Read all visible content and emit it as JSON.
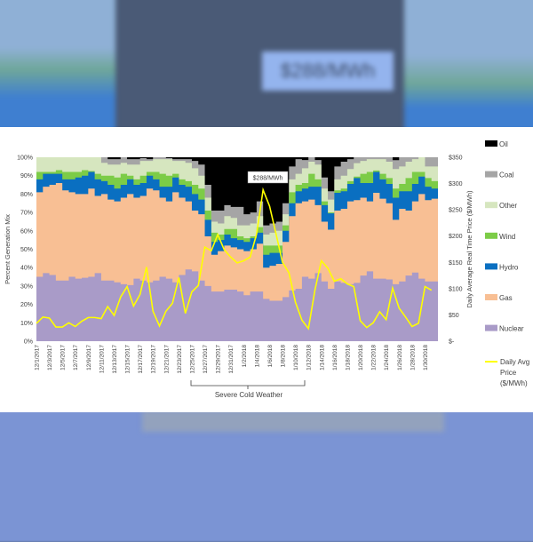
{
  "background": {
    "blurred_annotation": "$288/MWh"
  },
  "chart_data": {
    "type": "area",
    "subtype": "stacked step area with line overlay (secondary axis)",
    "x_start": "12/1/2017",
    "x_tick_labels": [
      "12/1/2017",
      "12/3/2017",
      "12/5/2017",
      "12/7/2017",
      "12/9/2017",
      "12/11/2017",
      "12/13/2017",
      "12/15/2017",
      "12/17/2017",
      "12/19/2017",
      "12/21/2017",
      "12/23/2017",
      "12/25/2017",
      "12/27/2017",
      "12/29/2017",
      "12/31/2017",
      "1/2/2018",
      "1/4/2018",
      "1/6/2018",
      "1/8/2018",
      "1/10/2018",
      "1/12/2018",
      "1/14/2018",
      "1/16/2018",
      "1/18/2018",
      "1/20/2018",
      "1/22/2018",
      "1/24/2018",
      "1/26/2018",
      "1/28/2018",
      "1/30/2018"
    ],
    "days": 62,
    "ylabel": "Percent Generation Mix",
    "ylabel_right": "Daily Average Real Time Price ($/MWh)",
    "y_ticks": [
      "0%",
      "10%",
      "20%",
      "30%",
      "40%",
      "50%",
      "60%",
      "70%",
      "80%",
      "90%",
      "100%"
    ],
    "y_right_ticks": [
      "$-",
      "$50",
      "$100",
      "$150",
      "$200",
      "$250",
      "$300",
      "$350"
    ],
    "ylim": [
      0,
      100
    ],
    "ylim_right": [
      0,
      350
    ],
    "stack_note": "values are cumulative stack tops in percent; Oil fills to 100%",
    "series": [
      {
        "name": "Nuclear",
        "color": "#a99bc8",
        "stack_top": [
          35,
          37,
          36,
          33,
          33,
          35,
          34,
          34.5,
          35,
          37,
          33,
          33,
          32,
          31,
          30.5,
          34,
          33,
          32,
          33,
          35,
          34,
          32,
          36,
          39,
          38,
          33,
          30,
          27,
          27,
          28,
          28,
          27,
          25,
          27,
          27,
          23,
          22,
          22,
          24,
          27.6,
          28.5,
          35,
          34,
          37,
          32.5,
          28.5,
          32.5,
          31.7,
          31,
          31.7,
          35.7,
          38,
          34,
          34,
          33.6,
          31,
          32.5,
          35.7,
          37.3,
          34,
          32.5,
          32.5
        ]
      },
      {
        "name": "Gas",
        "color": "#f8bf94",
        "stack_top": [
          81,
          84,
          85,
          86,
          82,
          81,
          80,
          80,
          83,
          79,
          80,
          77,
          76,
          78,
          80,
          78,
          79,
          83,
          82,
          78,
          76,
          81,
          78,
          76,
          71,
          69,
          57,
          47,
          49,
          52,
          51,
          50,
          49,
          50,
          53,
          40,
          41,
          42,
          54,
          68,
          75,
          76,
          77,
          74,
          65,
          60.6,
          71,
          72,
          76,
          76.7,
          78,
          76,
          80.7,
          77.5,
          75,
          66,
          72,
          71,
          76,
          80,
          76.7,
          77.5
        ]
      },
      {
        "name": "Hydro",
        "color": "#0a6fc1",
        "stack_top": [
          88,
          91,
          91,
          91,
          88,
          88,
          89,
          90,
          92,
          88,
          87,
          85,
          83,
          85,
          88,
          85,
          86,
          90,
          88,
          84,
          84,
          89,
          85,
          84,
          80,
          77,
          66,
          54,
          55,
          58,
          56,
          55,
          54,
          56,
          59,
          47,
          48,
          48,
          60,
          75,
          81.5,
          83,
          84,
          84,
          74,
          69.5,
          80.7,
          81.5,
          85.5,
          88.7,
          86,
          86,
          92,
          88,
          85.5,
          78,
          81.5,
          81.5,
          85.5,
          89.5,
          84,
          83
        ]
      },
      {
        "name": "Wind",
        "color": "#7ccc47",
        "stack_top": [
          92,
          92,
          92,
          93,
          92,
          92,
          92,
          93,
          92.5,
          91,
          90,
          90,
          89,
          91,
          90,
          88,
          90,
          92,
          92,
          91,
          90,
          91,
          88,
          87,
          85,
          83,
          71,
          59,
          58,
          61,
          61,
          57,
          56,
          57,
          62,
          52,
          52,
          52,
          63,
          81,
          85,
          86,
          91,
          88,
          76,
          70,
          82,
          83,
          87,
          89.5,
          91,
          92,
          92.8,
          91,
          88.7,
          83,
          85.5,
          88.7,
          92,
          92,
          88.7,
          87
        ]
      },
      {
        "name": "Other",
        "color": "#d6e6bf",
        "stack_top": [
          100,
          100,
          100,
          100,
          100,
          100,
          100,
          100,
          100,
          100,
          97,
          96,
          96,
          97,
          96,
          96,
          98,
          98,
          99,
          99,
          99,
          98,
          98,
          97,
          94,
          90,
          78,
          65,
          64,
          68,
          67,
          63,
          63,
          64,
          68,
          58,
          59,
          60,
          69,
          88,
          91,
          94,
          97.6,
          96,
          83,
          77,
          88,
          90,
          93.6,
          96.8,
          98,
          99,
          99,
          99,
          97.6,
          93.6,
          95,
          97.6,
          99,
          100,
          95,
          95
        ]
      },
      {
        "name": "Coal",
        "color": "#a5a5a5",
        "stack_top": [
          100,
          100,
          100,
          100,
          100,
          100,
          100,
          100,
          100,
          100,
          100,
          99,
          99,
          100,
          99,
          99,
          99.5,
          99,
          100,
          100,
          99.5,
          99,
          99,
          99,
          98,
          96,
          85,
          71,
          71,
          74,
          73,
          73,
          69,
          70,
          76,
          63,
          64,
          65,
          75,
          95,
          99,
          98.5,
          100,
          98.5,
          89,
          81.5,
          95,
          97.6,
          99,
          100,
          100,
          100,
          100,
          100,
          100,
          98.4,
          100,
          100,
          100,
          100,
          100,
          100
        ]
      },
      {
        "name": "Oil",
        "color": "#000000",
        "stack_top": [
          100,
          100,
          100,
          100,
          100,
          100,
          100,
          100,
          100,
          100,
          100,
          100,
          100,
          100,
          100,
          100,
          100,
          100,
          100,
          100,
          100,
          100,
          100,
          100,
          100,
          100,
          100,
          100,
          100,
          100,
          100,
          100,
          100,
          100,
          100,
          100,
          100,
          100,
          100,
          100,
          100,
          100,
          100,
          100,
          100,
          100,
          100,
          100,
          100,
          100,
          100,
          100,
          100,
          100,
          100,
          100,
          100,
          100,
          100,
          100,
          100,
          100
        ]
      }
    ],
    "price_series": {
      "name": "Daily Avg Price ($/MWh)",
      "color": "#ffff00",
      "values": [
        34,
        46,
        44,
        27,
        27,
        35,
        28,
        38,
        45,
        45,
        43,
        66,
        49,
        84,
        104,
        67,
        89,
        141,
        57,
        29,
        57,
        72,
        121,
        53,
        94,
        106,
        179,
        172,
        203,
        174,
        160,
        149,
        153,
        160,
        204,
        288,
        257,
        204,
        150,
        130,
        74,
        40,
        24,
        97,
        153,
        139,
        114,
        119,
        109,
        104,
        39,
        26,
        35,
        56,
        41,
        101,
        63,
        46,
        28,
        34,
        104,
        97
      ]
    },
    "legend": {
      "placement": "right",
      "items": [
        "Oil",
        "Coal",
        "Other",
        "Wind",
        "Hydro",
        "Gas",
        "Nuclear"
      ],
      "line_item": [
        "Daily Avg",
        "Price",
        "($/MWh)"
      ]
    },
    "annotations": {
      "peak_label": "$288/MWh",
      "bracket_label": "Severe Cold Weather",
      "bracket_from": "12/25/2017",
      "bracket_to": "1/10/2018"
    }
  }
}
